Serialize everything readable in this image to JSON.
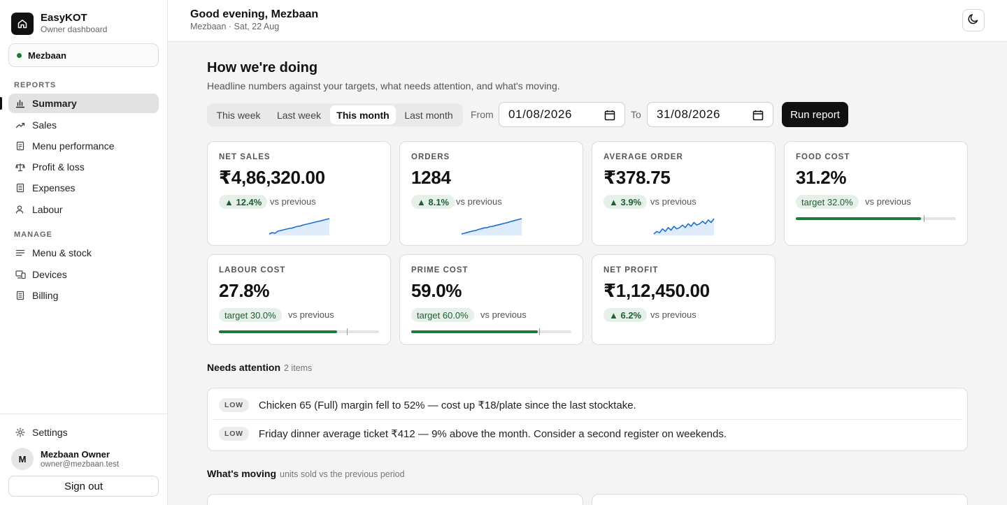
{
  "brand": {
    "name": "EasyKOT",
    "subtitle": "Owner dashboard"
  },
  "location": {
    "name": "Mezbaan",
    "status_color": "#1e7a3c"
  },
  "sidebar": {
    "reports_label": "REPORTS",
    "reports": [
      {
        "label": "Summary",
        "icon": "bar-chart-icon",
        "active": true
      },
      {
        "label": "Sales",
        "icon": "trend-up-icon"
      },
      {
        "label": "Menu performance",
        "icon": "document-icon"
      },
      {
        "label": "Profit & loss",
        "icon": "scale-icon"
      },
      {
        "label": "Expenses",
        "icon": "receipt-icon"
      },
      {
        "label": "Labour",
        "icon": "user-icon"
      }
    ],
    "manage_label": "MANAGE",
    "manage": [
      {
        "label": "Menu & stock",
        "icon": "list-icon"
      },
      {
        "label": "Devices",
        "icon": "devices-icon"
      },
      {
        "label": "Billing",
        "icon": "receipt-icon"
      }
    ],
    "settings_label": "Settings"
  },
  "user": {
    "initial": "M",
    "name": "Mezbaan Owner",
    "email": "owner@mezbaan.test",
    "signout_label": "Sign out"
  },
  "header": {
    "greeting": "Good evening, Mezbaan",
    "subtitle": "Mezbaan · Sat, 22 Aug",
    "theme_icon": "moon-icon"
  },
  "main": {
    "title": "How we're doing",
    "subtitle": "Headline numbers against your targets, what needs attention, and what's moving.",
    "periods": [
      "This week",
      "Last week",
      "This month",
      "Last month"
    ],
    "selected_period": "This month",
    "from_label": "From",
    "from_value": "01/08/2026",
    "to_label": "To",
    "to_value": "31/08/2026",
    "run_label": "Run report"
  },
  "kpis": [
    {
      "label": "NET SALES",
      "value": "₹4,86,320.00",
      "change": "▲ 12.4%",
      "vs": "vs previous",
      "trend": [
        3,
        4,
        3.5,
        5,
        5.5,
        6,
        6.5,
        7,
        7.2,
        8,
        8.5,
        8.8,
        9.5,
        10,
        10.5,
        11,
        11.5,
        12,
        12.4,
        13,
        13.5,
        14
      ]
    },
    {
      "label": "ORDERS",
      "value": "1284",
      "change": "▲ 8.1%",
      "vs": "vs previous",
      "trend": [
        3,
        3.5,
        4,
        4.5,
        5,
        5.3,
        6,
        6.5,
        7,
        7.2,
        7.8,
        8,
        8.6,
        9,
        9.5,
        10,
        10.4,
        11,
        11.5,
        12,
        12.5,
        13
      ]
    },
    {
      "label": "AVERAGE ORDER",
      "value": "₹378.75",
      "change": "▲ 3.9%",
      "vs": "vs previous",
      "trend": [
        4,
        6,
        5,
        8,
        6,
        9,
        7,
        10,
        8,
        9,
        11,
        9,
        12,
        10,
        13,
        11,
        12,
        14,
        12,
        15,
        13,
        16
      ]
    },
    {
      "label": "FOOD COST",
      "value": "31.2%",
      "target": "target 32.0%",
      "vs": "vs previous",
      "fill": 0.78,
      "target_pos": 0.8
    },
    {
      "label": "LABOUR COST",
      "value": "27.8%",
      "target": "target 30.0%",
      "vs": "vs previous",
      "fill": 0.74,
      "target_pos": 0.8
    },
    {
      "label": "PRIME COST",
      "value": "59.0%",
      "target": "target 60.0%",
      "vs": "vs previous",
      "fill": 0.79,
      "target_pos": 0.8
    },
    {
      "label": "NET PROFIT",
      "value": "₹1,12,450.00",
      "change": "▲ 6.2%",
      "vs": "vs previous"
    }
  ],
  "attention": {
    "title": "Needs attention",
    "count": "2 items",
    "items": [
      {
        "severity": "LOW",
        "text": "Chicken 65 (Full) margin fell to 52% — cost up ₹18/plate since the last stocktake."
      },
      {
        "severity": "LOW",
        "text": "Friday dinner average ticket ₹412 — 9% above the month. Consider a second register on weekends."
      }
    ]
  },
  "moving": {
    "title": "What's moving",
    "note": "units sold vs the previous period"
  },
  "colors": {
    "accent": "#111111",
    "good": "#1e7a3c",
    "good_bg": "#e5f1e8",
    "spark": "#1a6fd1"
  }
}
